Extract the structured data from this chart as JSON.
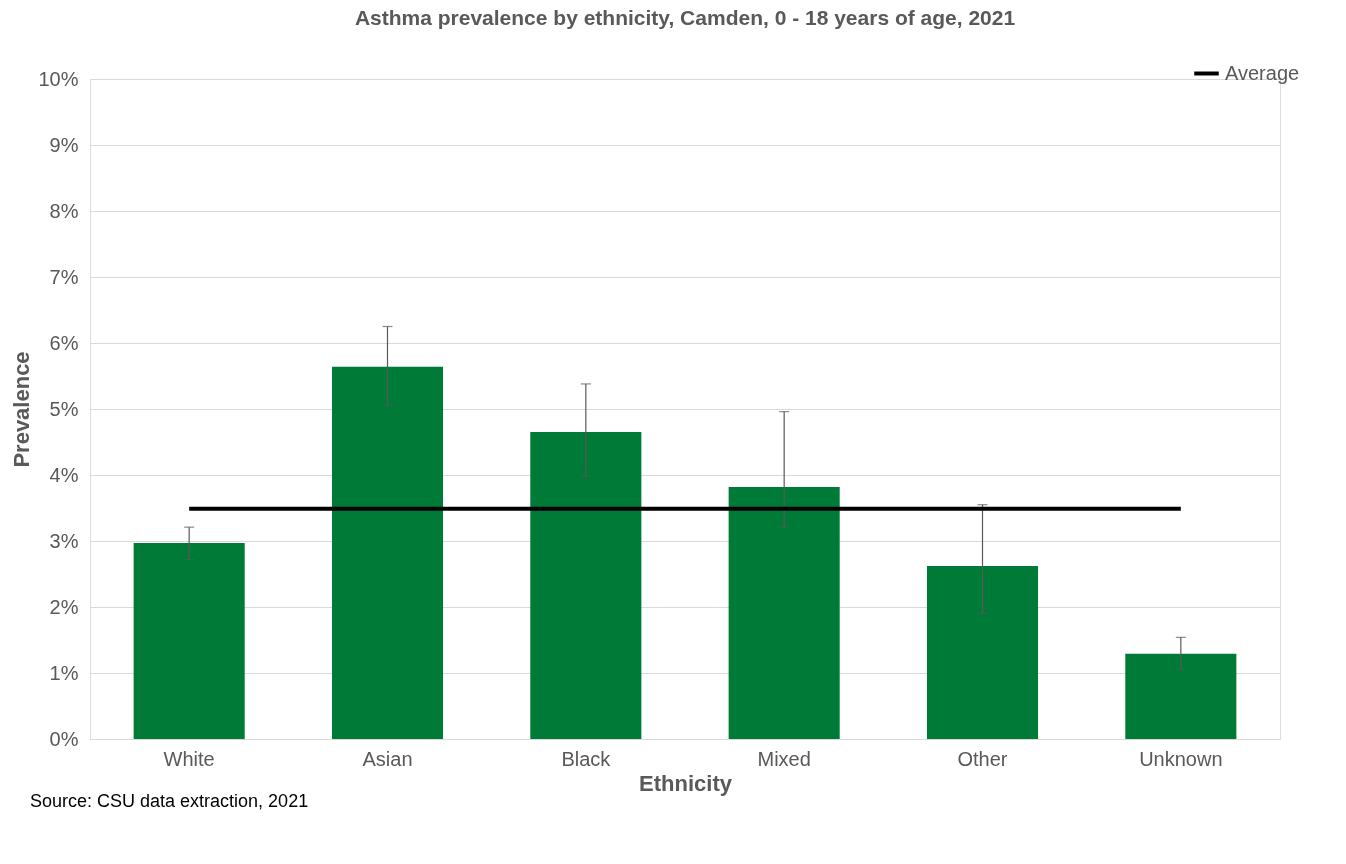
{
  "chart_data": {
    "type": "bar",
    "title": "Asthma prevalence by ethnicity, Camden, 0 - 18 years of age, 2021",
    "xlabel": "Ethnicity",
    "ylabel": "Prevalence",
    "categories": [
      "White",
      "Asian",
      "Black",
      "Mixed",
      "Other",
      "Unknown"
    ],
    "series": [
      {
        "color": "#007a37",
        "values": [
          2.97,
          5.64,
          4.65,
          3.82,
          2.62,
          1.29
        ],
        "errors": [
          [
            2.72,
            3.21
          ],
          [
            5.06,
            6.25
          ],
          [
            3.98,
            5.38
          ],
          [
            3.2,
            4.96
          ],
          [
            1.9,
            3.55
          ],
          [
            1.06,
            1.54
          ]
        ]
      },
      {
        "name": "Average",
        "type": "line",
        "color": "#000000",
        "values": [
          3.49,
          3.49,
          3.49,
          3.49,
          3.49,
          3.49
        ]
      }
    ],
    "ylim": [
      0,
      10
    ],
    "yticks": [
      {
        "value": 0,
        "label": "0%"
      },
      {
        "value": 1,
        "label": "1%"
      },
      {
        "value": 2,
        "label": "2%"
      },
      {
        "value": 3,
        "label": "3%"
      },
      {
        "value": 4,
        "label": "4%"
      },
      {
        "value": 5,
        "label": "5%"
      },
      {
        "value": 6,
        "label": "6%"
      },
      {
        "value": 7,
        "label": "7%"
      },
      {
        "value": 8,
        "label": "8%"
      },
      {
        "value": 9,
        "label": "9%"
      },
      {
        "value": 10,
        "label": "10%"
      }
    ],
    "grid": "y",
    "legend": "top right",
    "annotations": [
      "Source: CSU data extraction, 2021"
    ]
  }
}
